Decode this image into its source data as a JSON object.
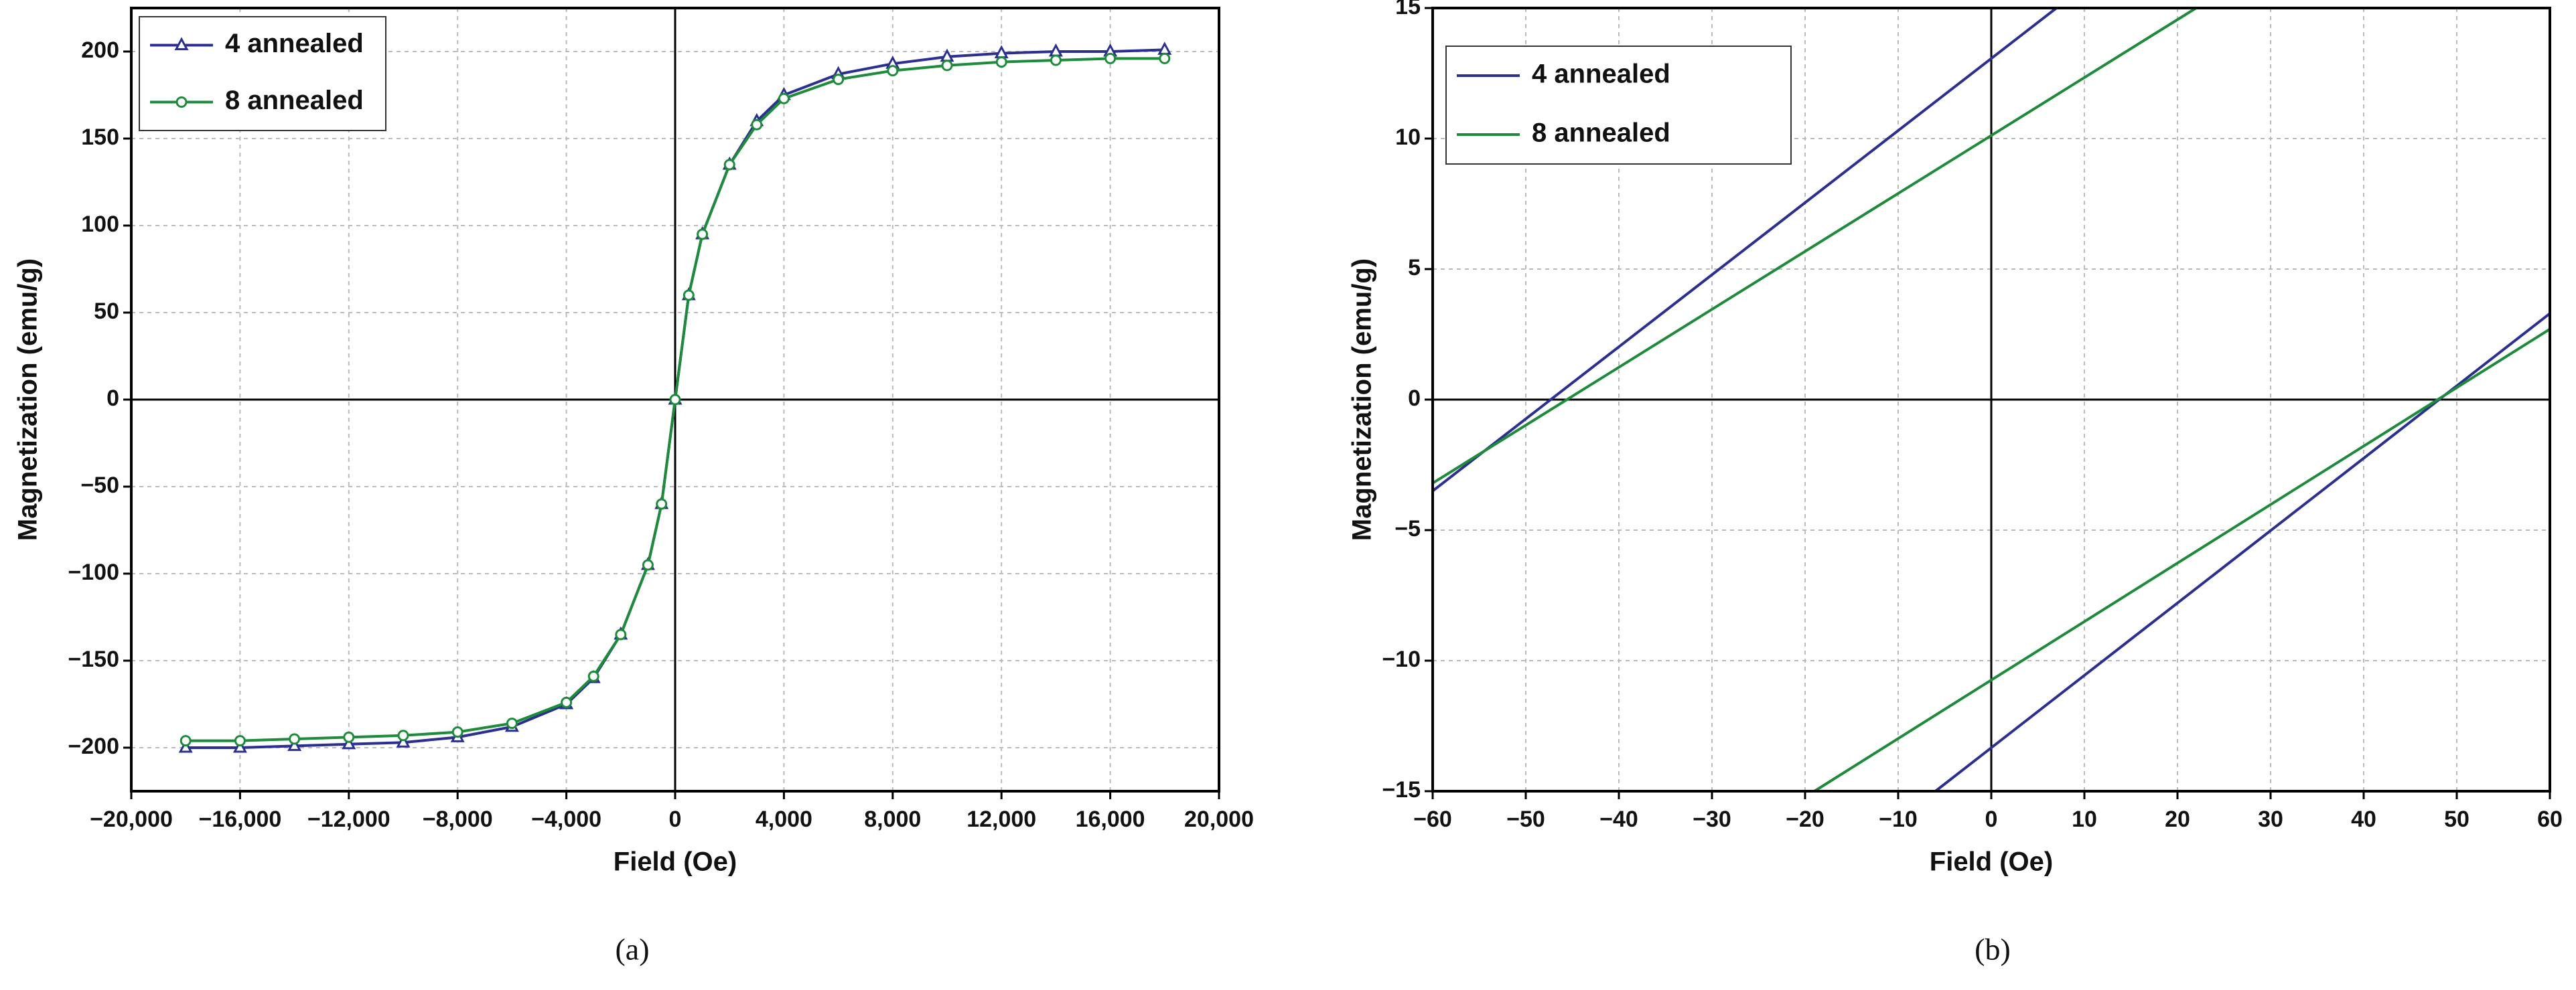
{
  "chart_data": [
    {
      "type": "line",
      "caption": "(a)",
      "xlabel": "Field (Oe)",
      "ylabel": "Magnetization (emu/g)",
      "xlim": [
        -20000,
        20000
      ],
      "ylim": [
        -225,
        225
      ],
      "grid": true,
      "legend": "upper left",
      "markers": true,
      "xticks": [
        {
          "value": -20000,
          "label": "−20,000"
        },
        {
          "value": -16000,
          "label": "−16,000"
        },
        {
          "value": -12000,
          "label": "−12,000"
        },
        {
          "value": -8000,
          "label": "−8,000"
        },
        {
          "value": -4000,
          "label": "−4,000"
        },
        0,
        {
          "value": 4000,
          "label": "4,000"
        },
        {
          "value": 8000,
          "label": "8,000"
        },
        {
          "value": 12000,
          "label": "12,000"
        },
        {
          "value": 16000,
          "label": "16,000"
        },
        {
          "value": 20000,
          "label": "20,000"
        }
      ],
      "yticks": [
        {
          "value": -200,
          "label": "−200"
        },
        {
          "value": -150,
          "label": "−150"
        },
        {
          "value": -100,
          "label": "−100"
        },
        {
          "value": -50,
          "label": "−50"
        },
        0,
        50,
        100,
        150,
        200
      ],
      "series": [
        {
          "name": "4 annealed",
          "color": "#2b2f8f",
          "marker": "triangle",
          "x": [
            -18000,
            -16000,
            -14000,
            -12000,
            -10000,
            -8000,
            -6000,
            -4000,
            -3000,
            -2000,
            -1000,
            -500,
            0,
            500,
            1000,
            2000,
            3000,
            4000,
            6000,
            8000,
            10000,
            12000,
            14000,
            16000,
            18000
          ],
          "values": [
            -200,
            -200,
            -199,
            -198,
            -197,
            -194,
            -188,
            -175,
            -160,
            -135,
            -95,
            -60,
            0,
            60,
            95,
            135,
            160,
            175,
            187,
            193,
            197,
            199,
            200,
            200,
            201
          ]
        },
        {
          "name": "8 annealed",
          "color": "#1e8b3c",
          "marker": "circle",
          "x": [
            -18000,
            -16000,
            -14000,
            -12000,
            -10000,
            -8000,
            -6000,
            -4000,
            -3000,
            -2000,
            -1000,
            -500,
            0,
            500,
            1000,
            2000,
            3000,
            4000,
            6000,
            8000,
            10000,
            12000,
            14000,
            16000,
            18000
          ],
          "values": [
            -196,
            -196,
            -195,
            -194,
            -193,
            -191,
            -186,
            -174,
            -159,
            -135,
            -95,
            -60,
            0,
            60,
            95,
            135,
            158,
            173,
            184,
            189,
            192,
            194,
            195,
            196,
            196
          ]
        }
      ]
    },
    {
      "type": "line",
      "caption": "(b)",
      "xlabel": "Field (Oe)",
      "ylabel": "Magnetization (emu/g)",
      "xlim": [
        -60,
        60
      ],
      "ylim": [
        -15,
        15
      ],
      "grid": true,
      "legend": "upper left",
      "markers": false,
      "xticks": [
        {
          "value": -60,
          "label": "−60"
        },
        {
          "value": -50,
          "label": "−50"
        },
        {
          "value": -40,
          "label": "−40"
        },
        {
          "value": -30,
          "label": "−30"
        },
        {
          "value": -20,
          "label": "−20"
        },
        {
          "value": -10,
          "label": "−10"
        },
        0,
        10,
        20,
        30,
        40,
        50,
        60
      ],
      "yticks": [
        {
          "value": -15,
          "label": "−15"
        },
        {
          "value": -10,
          "label": "−10"
        },
        {
          "value": -5,
          "label": "−5"
        },
        0,
        5,
        10,
        15
      ],
      "series": [
        {
          "name": "4 annealed",
          "color": "#2b2f8f",
          "x": [
            -60,
            7,
            null,
            -6,
            60
          ],
          "values": [
            -3.5,
            15,
            null,
            -15,
            3.3
          ]
        },
        {
          "name": "8 annealed",
          "color": "#1e8b3c",
          "x": [
            -60,
            22,
            null,
            -19,
            60
          ],
          "values": [
            -3.2,
            15,
            null,
            -15,
            2.7
          ]
        }
      ]
    }
  ]
}
